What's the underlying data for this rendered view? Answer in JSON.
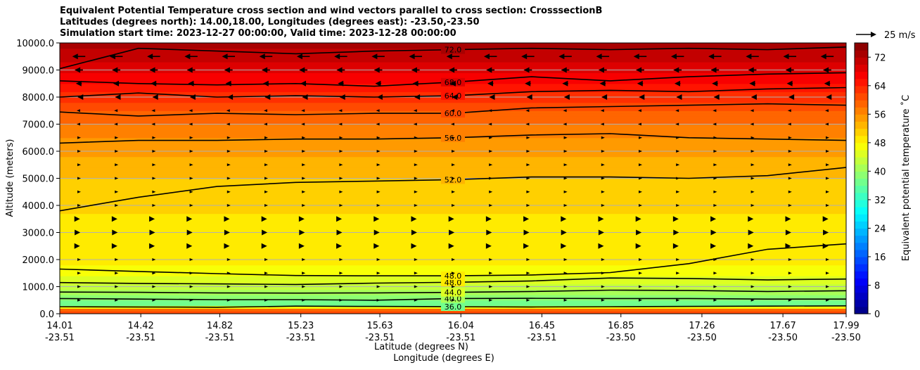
{
  "chart_data": {
    "type": "heatmap",
    "title_lines": [
      "Equivalent Potential Temperature cross section and wind vectors parallel to cross section: CrosssectionB",
      "Latitudes (degrees north): 14.00,18.00, Longitudes (degrees east): -23.50,-23.50",
      "Simulation start time: 2023-12-27 00:00:00, Valid time: 2023-12-28 00:00:00"
    ],
    "ylabel": "Altitude (meters)",
    "xlabel_lat": "Latitude (degrees N)",
    "xlabel_lon": "Longitude (degrees E)",
    "ylim": [
      0,
      10000
    ],
    "xlim": [
      14.01,
      17.99
    ],
    "y_ticks": [
      "0.0",
      "1000.0",
      "2000.0",
      "3000.0",
      "4000.0",
      "5000.0",
      "6000.0",
      "7000.0",
      "8000.0",
      "9000.0",
      "10000.0"
    ],
    "x_ticks": [
      {
        "lat": "14.01",
        "lon": "-23.51",
        "v": 14.01
      },
      {
        "lat": "14.42",
        "lon": "-23.51",
        "v": 14.42
      },
      {
        "lat": "14.82",
        "lon": "-23.51",
        "v": 14.82
      },
      {
        "lat": "15.23",
        "lon": "-23.51",
        "v": 15.23
      },
      {
        "lat": "15.63",
        "lon": "-23.51",
        "v": 15.63
      },
      {
        "lat": "16.04",
        "lon": "-23.51",
        "v": 16.04
      },
      {
        "lat": "16.45",
        "lon": "-23.51",
        "v": 16.45
      },
      {
        "lat": "16.85",
        "lon": "-23.50",
        "v": 16.85
      },
      {
        "lat": "17.26",
        "lon": "-23.50",
        "v": 17.26
      },
      {
        "lat": "17.67",
        "lon": "-23.50",
        "v": 17.67
      },
      {
        "lat": "17.99",
        "lon": "-23.50",
        "v": 17.99
      }
    ],
    "colorbar": {
      "label": "Equivalent potential temperature ˚C",
      "ticks": [
        "0",
        "8",
        "16",
        "24",
        "32",
        "40",
        "48",
        "56",
        "64",
        "72"
      ],
      "range": [
        0,
        76
      ]
    },
    "quiver_key": "25 m/s",
    "contour_levels": [
      {
        "value": 36,
        "label": "36.0",
        "alt": [
          260,
          250,
          240,
          280,
          270,
          260,
          250,
          260,
          270,
          280,
          290
        ]
      },
      {
        "value": 40,
        "label": "40.0",
        "alt": [
          560,
          540,
          520,
          520,
          500,
          560,
          570,
          560,
          560,
          540,
          540
        ]
      },
      {
        "value": 44,
        "label": "44.0",
        "alt": [
          800,
          790,
          770,
          760,
          770,
          790,
          820,
          870,
          860,
          820,
          850
        ]
      },
      {
        "value": 48,
        "label": "48.0",
        "alt": [
          1150,
          1120,
          1100,
          1080,
          1130,
          1160,
          1210,
          1320,
          1300,
          1250,
          1280
        ]
      },
      {
        "value": 48,
        "label": "48.0",
        "alt": [
          1650,
          1560,
          1480,
          1410,
          1400,
          1400,
          1430,
          1520,
          1850,
          2380,
          2580
        ]
      },
      {
        "value": 52,
        "label": "52.0",
        "alt": [
          3800,
          4300,
          4700,
          4850,
          4900,
          4950,
          5050,
          5050,
          5000,
          5100,
          5400
        ]
      },
      {
        "value": 56,
        "label": "56.0",
        "alt": [
          6300,
          6400,
          6400,
          6450,
          6450,
          6500,
          6600,
          6650,
          6500,
          6450,
          6400
        ]
      },
      {
        "value": 60,
        "label": "60.0",
        "alt": [
          7450,
          7300,
          7400,
          7350,
          7400,
          7400,
          7600,
          7650,
          7700,
          7750,
          7700
        ]
      },
      {
        "value": 64,
        "label": "64.0",
        "alt": [
          8000,
          8150,
          8000,
          8050,
          8000,
          8050,
          8200,
          8250,
          8200,
          8300,
          8350
        ]
      },
      {
        "value": 68,
        "label": "68.0",
        "alt": [
          8600,
          8500,
          8450,
          8500,
          8400,
          8550,
          8750,
          8600,
          8750,
          8850,
          8900
        ]
      },
      {
        "value": 72,
        "label": "72.0",
        "alt": [
          9050,
          9800,
          9700,
          9600,
          9700,
          9750,
          9800,
          9750,
          9800,
          9750,
          9850
        ]
      }
    ],
    "theta_profile": [
      {
        "alt": 0,
        "value": 62
      },
      {
        "alt": 150,
        "value": 58
      },
      {
        "alt": 350,
        "value": 36
      },
      {
        "alt": 700,
        "value": 40
      },
      {
        "alt": 1200,
        "value": 45
      },
      {
        "alt": 1800,
        "value": 48
      },
      {
        "alt": 3000,
        "value": 49
      },
      {
        "alt": 4500,
        "value": 51
      },
      {
        "alt": 5500,
        "value": 53
      },
      {
        "alt": 6500,
        "value": 56
      },
      {
        "alt": 7500,
        "value": 60
      },
      {
        "alt": 8500,
        "value": 66
      },
      {
        "alt": 9300,
        "value": 70
      },
      {
        "alt": 10000,
        "value": 73
      }
    ],
    "wind_rows": [
      {
        "alt": 500,
        "u": 0.5
      },
      {
        "alt": 1000,
        "u": 1.5
      },
      {
        "alt": 1500,
        "u": 2
      },
      {
        "alt": 2000,
        "u": 3
      },
      {
        "alt": 2500,
        "u": 4
      },
      {
        "alt": 3000,
        "u": 5
      },
      {
        "alt": 3500,
        "u": 4
      },
      {
        "alt": 4000,
        "u": 2
      },
      {
        "alt": 4500,
        "u": 1
      },
      {
        "alt": 5000,
        "u": 0.5
      },
      {
        "alt": 5500,
        "u": 0.3
      },
      {
        "alt": 6000,
        "u": 0.3
      },
      {
        "alt": 6500,
        "u": 0.3
      },
      {
        "alt": 7000,
        "u": -0.5
      },
      {
        "alt": 7500,
        "u": -2
      },
      {
        "alt": 8000,
        "u": -4
      },
      {
        "alt": 8500,
        "u": -10
      },
      {
        "alt": 9000,
        "u": -14
      },
      {
        "alt": 9500,
        "u": -22
      }
    ]
  }
}
